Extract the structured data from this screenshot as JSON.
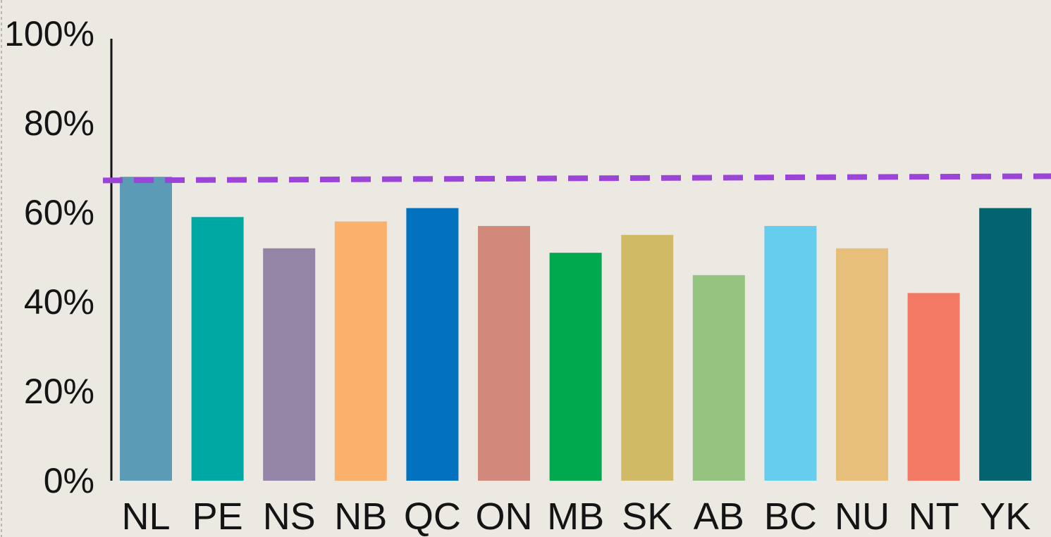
{
  "chart_data": {
    "type": "bar",
    "title": "",
    "xlabel": "",
    "ylabel": "",
    "ylim": [
      0,
      100
    ],
    "y_ticks": [
      "0%",
      "20%",
      "40%",
      "60%",
      "80%",
      "100%"
    ],
    "y_tick_values": [
      0,
      20,
      40,
      60,
      80,
      100
    ],
    "categories": [
      "NL",
      "PE",
      "NS",
      "NB",
      "QC",
      "ON",
      "MB",
      "SK",
      "AB",
      "BC",
      "NU",
      "NT",
      "YK"
    ],
    "values": [
      68,
      59,
      52,
      58,
      61,
      57,
      51,
      55,
      46,
      57,
      52,
      42,
      61
    ],
    "bar_colors": [
      "#5b9bb5",
      "#00a8a3",
      "#9484a6",
      "#fbb06b",
      "#0272c0",
      "#d1897b",
      "#00a94e",
      "#d0ba66",
      "#94c47f",
      "#67cdee",
      "#e8be7b",
      "#f37b66",
      "#03646f"
    ],
    "reference_line": {
      "value": 67.5,
      "style": "dashed",
      "color": "#9a44d8"
    },
    "grid": false,
    "legend": "none",
    "colors": {
      "background": "#ece9e3",
      "axis": "#141414",
      "text": "#141414"
    }
  }
}
